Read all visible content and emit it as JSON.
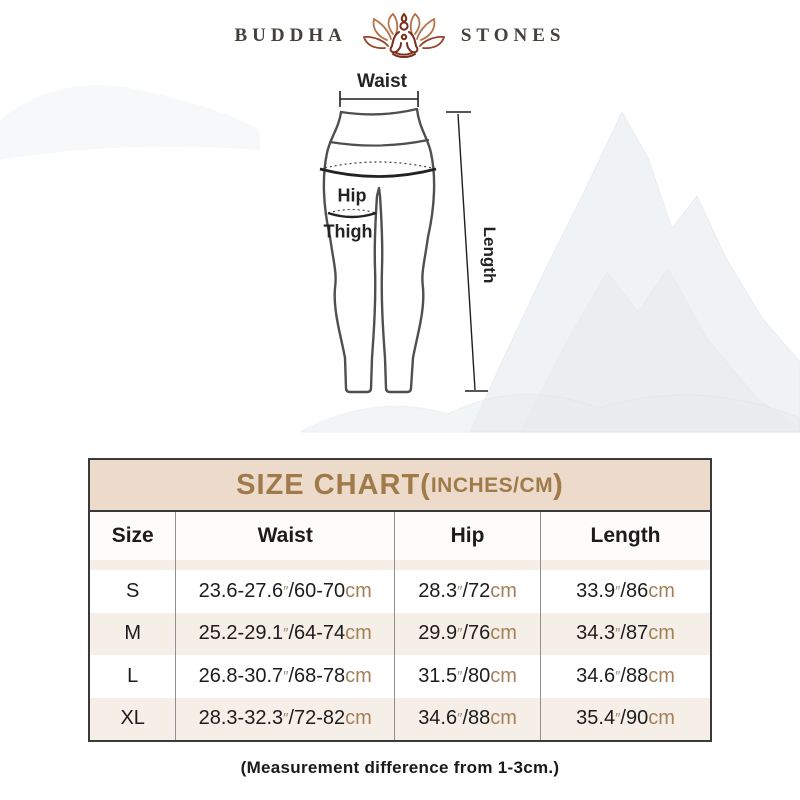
{
  "brand": {
    "left": "BUDDHA",
    "right": "STONES",
    "icon": "lotus-meditation-icon"
  },
  "diagram": {
    "waist_label": "Waist",
    "hip_label": "Hip",
    "thigh_label": "Thigh",
    "length_label": "Length"
  },
  "size_chart": {
    "title_main": "SIZE CHART(",
    "title_sub": "INCHES/CM",
    "title_close": ")",
    "columns": [
      "Size",
      "Waist",
      "Hip",
      "Length"
    ],
    "rows": [
      {
        "size": "S",
        "waist": "23.6-27.6″/60-70cm",
        "hip": "28.3″/72cm",
        "length": "33.9″/86cm"
      },
      {
        "size": "M",
        "waist": "25.2-29.1″/64-74cm",
        "hip": "29.9″/76cm",
        "length": "34.3″/87cm"
      },
      {
        "size": "L",
        "waist": "26.8-30.7″/68-78cm",
        "hip": "31.5″/80cm",
        "length": "34.6″/88cm"
      },
      {
        "size": "XL",
        "waist": "28.3-32.3″/72-82cm",
        "hip": "34.6″/88cm",
        "length": "35.4″/90cm"
      }
    ]
  },
  "footnote": "(Measurement difference from 1-3cm.)",
  "colors": {
    "title_bg": "#ecdbcb",
    "title_text": "#a07a49",
    "stripe_bg": "#f6efe8",
    "cm_text": "#a2805a",
    "prime_text": "#9f8e77",
    "table_border": "#3a3a3a",
    "figure_stroke": "#4f4f4f",
    "logo_dark": "#7d2e1b",
    "logo_light": "#b5734a"
  }
}
